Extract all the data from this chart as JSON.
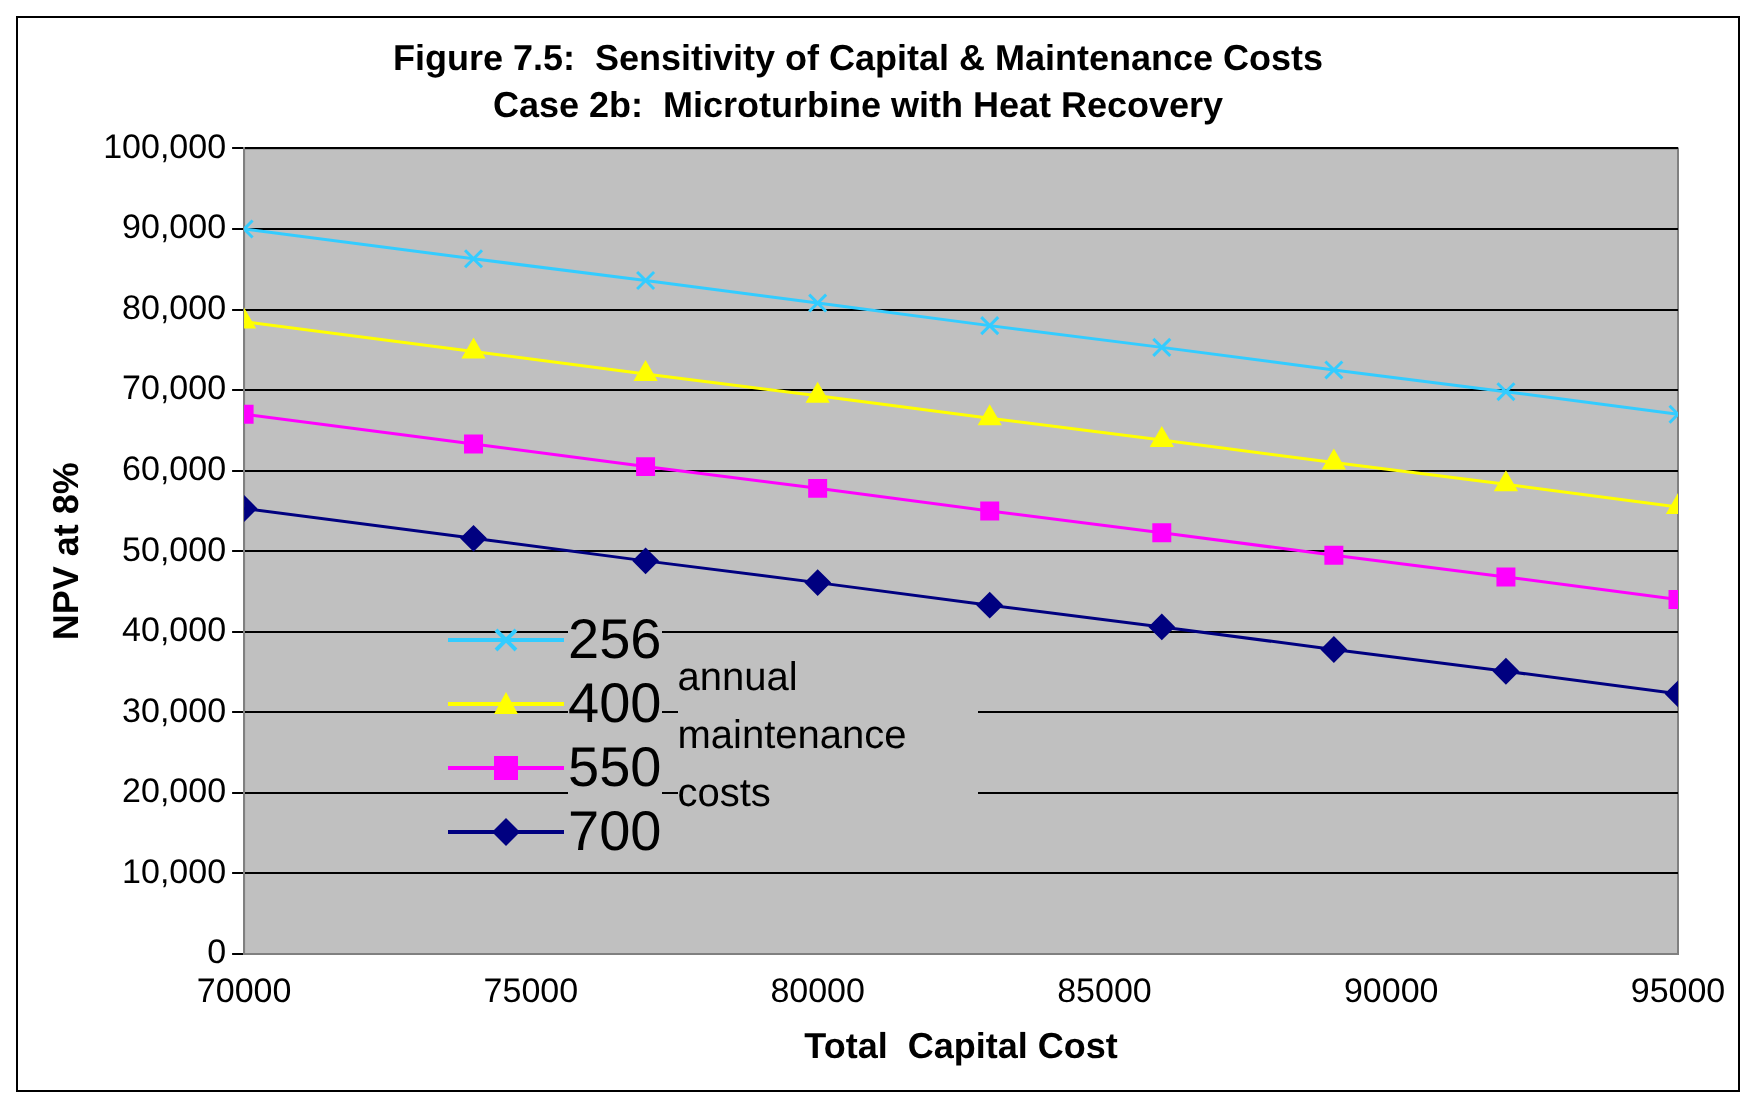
{
  "chart_data": {
    "type": "line",
    "title": "Figure 7.5:  Sensitivity of Capital & Maintenance Costs",
    "subtitle": "Case 2b:  Microturbine with Heat Recovery",
    "xlabel": "Total  Capital Cost",
    "ylabel": "NPV at 8%",
    "legend_title": "annual maintenance costs",
    "legend": "bottom left",
    "grid": "y",
    "x": [
      70000,
      74000,
      77000,
      80000,
      83000,
      86000,
      89000,
      92000,
      95000
    ],
    "xlim": [
      70000,
      95000
    ],
    "xticks": [
      70000,
      75000,
      80000,
      85000,
      90000,
      95000
    ],
    "ylim": [
      0,
      100000
    ],
    "yticks": [
      0,
      {
        "value": 10000,
        "label": "10,000"
      },
      {
        "value": 20000,
        "label": "20,000"
      },
      {
        "value": 30000,
        "label": "30,000"
      },
      {
        "value": 40000,
        "label": "40,000"
      },
      {
        "value": 50000,
        "label": "50,000"
      },
      {
        "value": 60000,
        "label": "60,000"
      },
      {
        "value": 70000,
        "label": "70,000"
      },
      {
        "value": 80000,
        "label": "80,000"
      },
      {
        "value": 90000,
        "label": "90,000"
      },
      {
        "value": 100000,
        "label": "100,000"
      }
    ],
    "series": [
      {
        "name": "256",
        "color": "#33ccff",
        "marker": "cross",
        "values": [
          90000,
          86300,
          83600,
          80800,
          78000,
          75300,
          72500,
          69800,
          67000
        ]
      },
      {
        "name": "400",
        "color": "#ffff00",
        "marker": "triangle",
        "values": [
          78500,
          74800,
          72000,
          69300,
          66500,
          63800,
          61000,
          58300,
          55500
        ]
      },
      {
        "name": "550",
        "color": "#ff00ff",
        "marker": "square",
        "values": [
          67000,
          63300,
          60500,
          57800,
          55000,
          52300,
          49500,
          46800,
          44000
        ]
      },
      {
        "name": "700",
        "color": "#000080",
        "marker": "diamond",
        "values": [
          55300,
          51600,
          48800,
          46100,
          43300,
          40600,
          37800,
          35100,
          32300
        ]
      }
    ]
  }
}
